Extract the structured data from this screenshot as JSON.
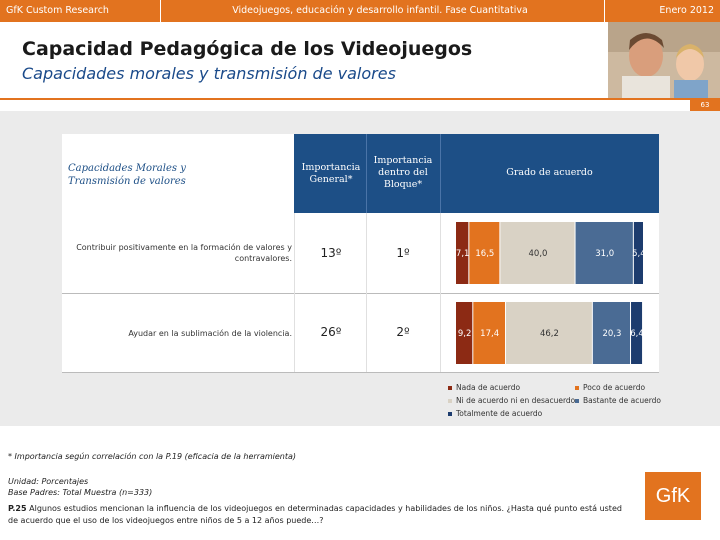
{
  "header": {
    "left": "GfK Custom Research",
    "center": "Videojuegos, educación y desarrollo infantil. Fase Cuantitativa",
    "right": "Enero 2012"
  },
  "title": "Capacidad Pedagógica de los Videojuegos",
  "subtitle": "Capacidades morales y transmisión de valores",
  "page_number": "63",
  "table_header": {
    "category": "Capacidades Morales y Transmisión de valores",
    "col_general": "Importancia General*",
    "col_block": "Importancia dentro del Bloque*",
    "col_agreement": "Grado de acuerdo"
  },
  "chart_data": {
    "type": "bar",
    "stacked": true,
    "orientation": "horizontal",
    "categories": [
      "Contribuir positivamente en la formación de valores y contravalores.",
      "Ayudar en la sublimación de la violencia."
    ],
    "ranks_general": [
      "13º",
      "26º"
    ],
    "ranks_block": [
      "1º",
      "2º"
    ],
    "series": [
      {
        "name": "Nada de acuerdo",
        "values": [
          7.1,
          9.2
        ],
        "labels": [
          "7,1",
          "9,2"
        ],
        "color": "#8c2a14"
      },
      {
        "name": "Poco de acuerdo",
        "values": [
          16.5,
          17.4
        ],
        "labels": [
          "16,5",
          "17,4"
        ],
        "color": "#e2731f"
      },
      {
        "name": "Ni de acuerdo ni en desacuerdo",
        "values": [
          40.0,
          46.2
        ],
        "labels": [
          "40,0",
          "46,2"
        ],
        "color": "#d9d2c5"
      },
      {
        "name": "Bastante de acuerdo",
        "values": [
          31.0,
          20.3
        ],
        "labels": [
          "31,0",
          "20,3"
        ],
        "color": "#4a6b94"
      },
      {
        "name": "Totalmente de acuerdo",
        "values": [
          5.4,
          6.4
        ],
        "labels": [
          "5,4",
          "6,4"
        ],
        "color": "#1d3c6e"
      }
    ],
    "xlim": [
      0,
      100
    ]
  },
  "notes": {
    "footnote": "* Importancia según correlación con la P.19 (eficacia de la herramienta)",
    "unit": "Unidad: Porcentajes",
    "base": "Base Padres: Total Muestra (n=333)",
    "question_code": "P.25",
    "question": "Algunos estudios mencionan la influencia de los videojuegos en determinadas capacidades y habilidades de los niños. ¿Hasta qué punto está usted de acuerdo que el uso de los videojuegos entre niños de 5 a 12 años puede…?"
  },
  "logo": "GfK",
  "colors": {
    "accent": "#e2731f",
    "header_blue": "#1d4f86"
  }
}
